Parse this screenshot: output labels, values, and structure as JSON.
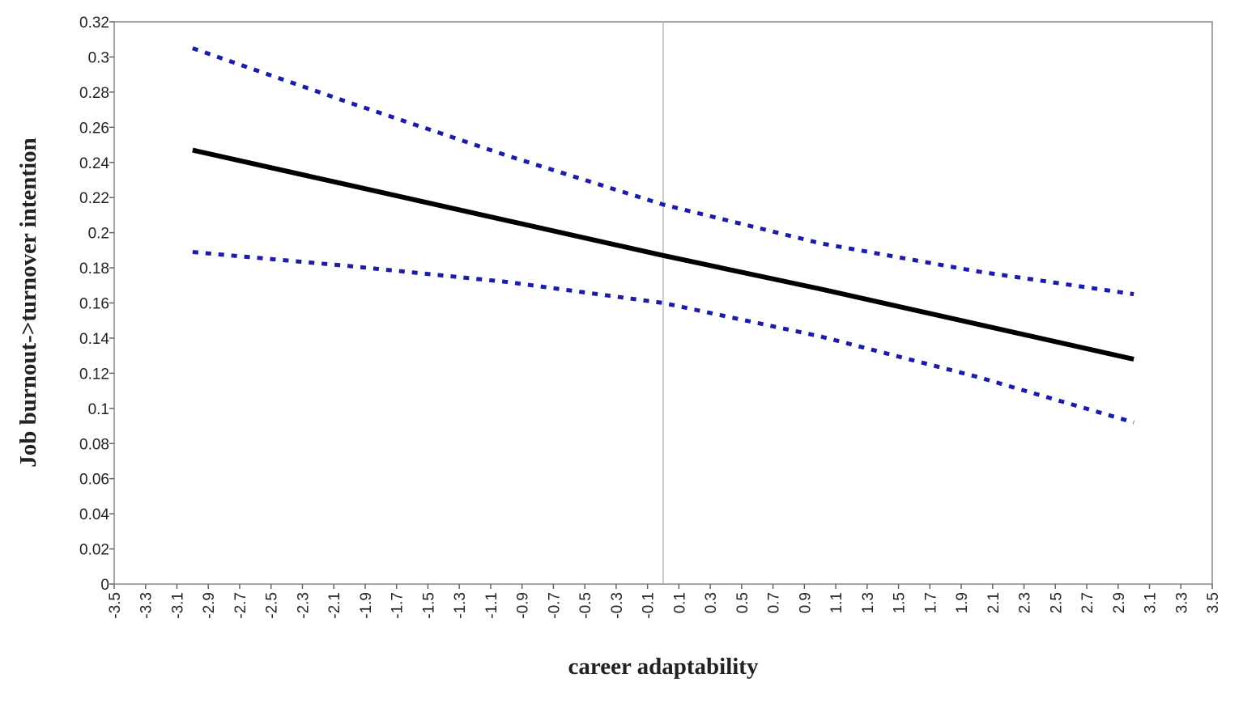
{
  "chart_data": {
    "type": "line",
    "xlabel": "career adaptability",
    "ylabel": "Job burnout->turnover intention",
    "x": [
      -3,
      -2,
      -1,
      0,
      1,
      2,
      3
    ],
    "series": [
      {
        "color": "#000000",
        "line_style": "solid",
        "values": [
          0.247,
          0.227,
          0.207,
          0.187,
          0.168,
          0.148,
          0.128
        ]
      },
      {
        "color": "#1c1ca8",
        "line_style": "dotted",
        "values": [
          0.305,
          0.274,
          0.244,
          0.216,
          0.194,
          0.178,
          0.165
        ]
      },
      {
        "color": "#1c1ca8",
        "line_style": "dotted",
        "values": [
          0.189,
          0.181,
          0.172,
          0.16,
          0.141,
          0.118,
          0.092
        ]
      }
    ],
    "vline": 0,
    "xlim": [
      -3.5,
      3.5
    ],
    "xticks": [
      -3.5,
      -3.3,
      -3.1,
      -2.9,
      -2.7,
      -2.5,
      -2.3,
      -2.1,
      -1.9,
      -1.7,
      -1.5,
      -1.3,
      -1.1,
      -0.9,
      -0.7,
      -0.5,
      -0.3,
      -0.1,
      0.1,
      0.3,
      0.5,
      0.7,
      0.9,
      1.1,
      1.3,
      1.5,
      1.7,
      1.9,
      2.1,
      2.3,
      2.5,
      2.7,
      2.9,
      3.1,
      3.3,
      3.5
    ],
    "ylim": [
      0,
      0.32
    ],
    "yticks": [
      0,
      0.02,
      0.04,
      0.06,
      0.08,
      0.1,
      0.12,
      0.14,
      0.16,
      0.18,
      0.2,
      0.22,
      0.24,
      0.26,
      0.28,
      0.3,
      0.32
    ]
  }
}
